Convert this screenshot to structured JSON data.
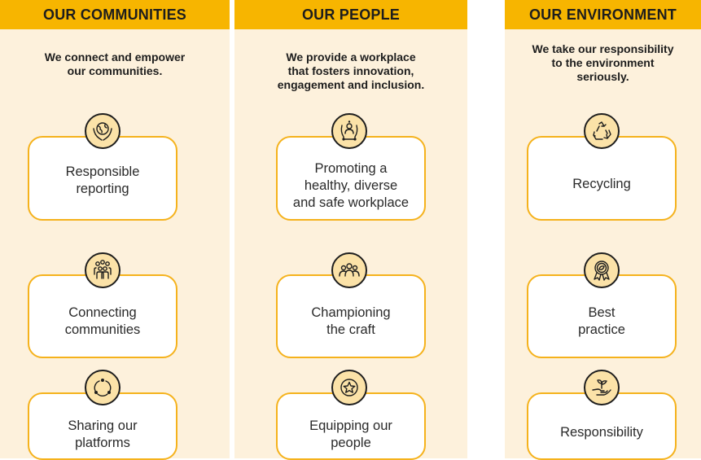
{
  "columns": [
    {
      "title": "OUR COMMUNITIES",
      "intro": "We connect and empower\nour communities.",
      "cards": [
        {
          "label": "Responsible\nreporting",
          "icon": "globe-hands-icon"
        },
        {
          "label": "Connecting\ncommunities",
          "icon": "people-group-icon"
        },
        {
          "label": "Sharing our\nplatforms",
          "icon": "share-cycle-icon"
        }
      ]
    },
    {
      "title": "OUR PEOPLE",
      "intro": "We provide a workplace\nthat fosters innovation,\nengagement and inclusion.",
      "cards": [
        {
          "label": "Promoting a\nhealthy, diverse\nand safe workplace",
          "icon": "person-support-icon"
        },
        {
          "label": "Championing\nthe craft",
          "icon": "team-icon"
        },
        {
          "label": "Equipping our\npeople",
          "icon": "star-badge-icon"
        }
      ]
    },
    {
      "title": "OUR ENVIRONMENT",
      "intro": "We take our responsibility\nto the environment\nseriously.",
      "cards": [
        {
          "label": "Recycling",
          "icon": "recycle-icon"
        },
        {
          "label": "Best\npractice",
          "icon": "leaf-award-icon"
        },
        {
          "label": "Responsibility",
          "icon": "plant-hand-icon"
        }
      ]
    }
  ],
  "colors": {
    "header": "#f7b500",
    "column_background": "#fdf1dc",
    "card_border": "#f5b21c",
    "icon_fill": "#fbe2a8"
  }
}
